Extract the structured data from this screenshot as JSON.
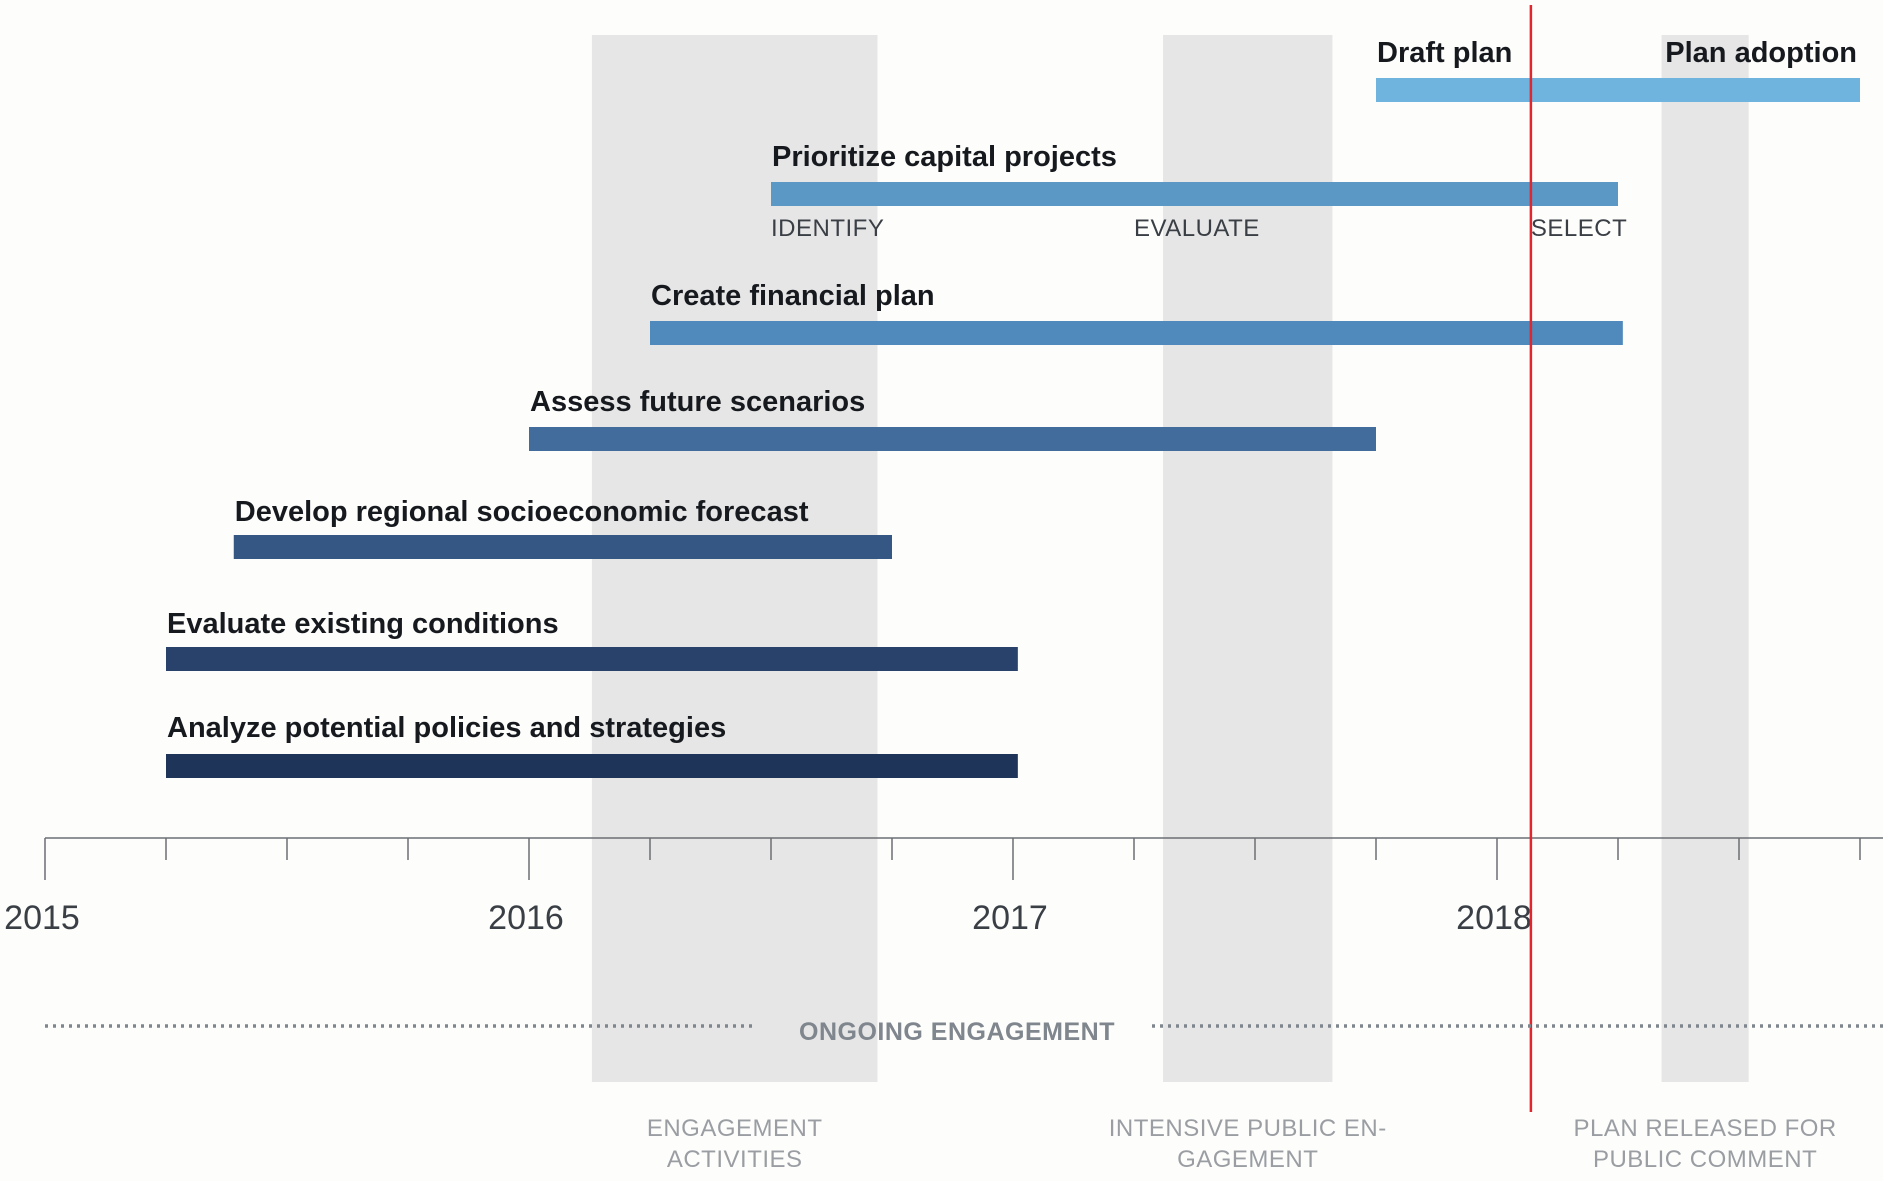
{
  "chart_data": {
    "type": "gantt",
    "x_axis": {
      "range": [
        2015.0,
        2018.8
      ],
      "tick_step": 0.25,
      "labels": [
        {
          "value": 2015,
          "text": "2015"
        },
        {
          "value": 2016,
          "text": "2016"
        },
        {
          "value": 2017,
          "text": "2017"
        },
        {
          "value": 2018,
          "text": "2018"
        }
      ]
    },
    "tasks": [
      {
        "label": "Draft plan",
        "start": 2017.75,
        "end": 2018.75,
        "color": "#6fb3df",
        "phases": [
          {
            "text": "Plan adoption",
            "at": 2018.75,
            "pos": "title-right"
          }
        ]
      },
      {
        "label": "Prioritize capital projects",
        "start": 2016.5,
        "end": 2018.25,
        "color": "#5b98c6",
        "phases": [
          {
            "text": "IDENTIFY",
            "at": 2016.5
          },
          {
            "text": "EVALUATE",
            "at": 2017.25
          },
          {
            "text": "SELECT",
            "at": 2018.07
          }
        ]
      },
      {
        "label": "Create financial plan",
        "start": 2016.25,
        "end": 2018.26,
        "color": "#5089bb",
        "phases": []
      },
      {
        "label": "Assess future scenarios",
        "start": 2016.0,
        "end": 2017.75,
        "color": "#426c9c",
        "phases": []
      },
      {
        "label": "Develop regional socioeconomic forecast",
        "start": 2015.39,
        "end": 2016.75,
        "color": "#345883",
        "phases": []
      },
      {
        "label": "Evaluate existing conditions",
        "start": 2015.25,
        "end": 2017.01,
        "color": "#28426b",
        "phases": []
      },
      {
        "label": "Analyze potential policies and strategies",
        "start": 2015.25,
        "end": 2017.01,
        "color": "#1f3459",
        "phases": []
      }
    ],
    "bands": [
      {
        "start": 2016.13,
        "end": 2016.72,
        "label": [
          "ENGAGEMENT",
          "ACTIVITIES"
        ]
      },
      {
        "start": 2017.31,
        "end": 2017.66,
        "label": [
          "INTENSIVE PUBLIC EN-",
          "GAGEMENT"
        ]
      },
      {
        "start": 2018.34,
        "end": 2018.52,
        "label": [
          "PLAN RELEASED FOR",
          "PUBLIC COMMENT"
        ]
      }
    ],
    "current_marker": {
      "value": 2018.07,
      "color": "#e1262d"
    },
    "ongoing": {
      "label": "ONGOING ENGAGEMENT",
      "start": 2015.0,
      "end": 2018.8
    }
  },
  "colors": {
    "band": "#e6e6e6",
    "axis": "#6b6f74",
    "dotted": "#7f868d"
  }
}
